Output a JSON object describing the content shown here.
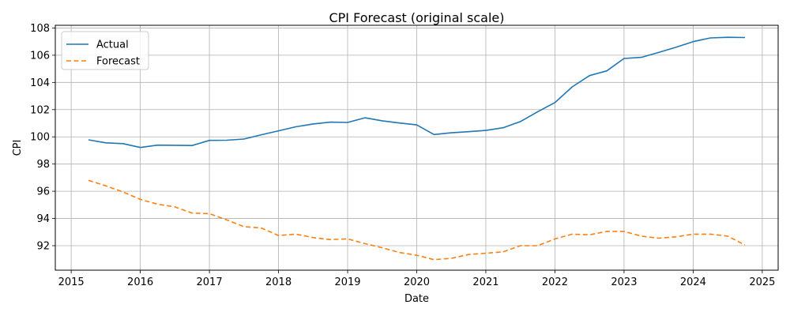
{
  "chart_data": {
    "type": "line",
    "title": "CPI Forecast (original scale)",
    "xlabel": "Date",
    "ylabel": "CPI",
    "xlim": [
      2014.77,
      2025.23
    ],
    "ylim": [
      90.2,
      108.2
    ],
    "x_ticks": [
      2015,
      2016,
      2017,
      2018,
      2019,
      2020,
      2021,
      2022,
      2023,
      2024,
      2025
    ],
    "x_tick_labels": [
      "2015",
      "2016",
      "2017",
      "2018",
      "2019",
      "2020",
      "2021",
      "2022",
      "2023",
      "2024",
      "2025"
    ],
    "y_ticks": [
      92,
      94,
      96,
      98,
      100,
      102,
      104,
      106,
      108
    ],
    "y_tick_labels": [
      "92",
      "94",
      "96",
      "98",
      "100",
      "102",
      "104",
      "106",
      "108"
    ],
    "grid": true,
    "legend_position": "upper-left",
    "x": [
      2015.25,
      2015.5,
      2015.75,
      2016.0,
      2016.25,
      2016.5,
      2016.75,
      2017.0,
      2017.25,
      2017.5,
      2017.75,
      2018.0,
      2018.25,
      2018.5,
      2018.75,
      2019.0,
      2019.25,
      2019.5,
      2019.75,
      2020.0,
      2020.25,
      2020.5,
      2020.75,
      2021.0,
      2021.25,
      2021.5,
      2021.75,
      2022.0,
      2022.25,
      2022.5,
      2022.75,
      2023.0,
      2023.25,
      2023.5,
      2023.75,
      2024.0,
      2024.25,
      2024.5,
      2024.75
    ],
    "series": [
      {
        "name": "Actual",
        "color": "#1f77b4",
        "style": "solid",
        "values": [
          99.78,
          99.56,
          99.5,
          99.22,
          99.39,
          99.38,
          99.36,
          99.74,
          99.75,
          99.84,
          100.15,
          100.44,
          100.74,
          100.95,
          101.08,
          101.06,
          101.4,
          101.18,
          101.02,
          100.88,
          100.17,
          100.3,
          100.38,
          100.47,
          100.67,
          101.12,
          101.85,
          102.52,
          103.67,
          104.5,
          104.85,
          105.76,
          105.84,
          106.2,
          106.58,
          107.0,
          107.27,
          107.32,
          107.3
        ]
      },
      {
        "name": "Forecast",
        "color": "#ff7f0e",
        "style": "dashed",
        "values": [
          96.8,
          96.4,
          95.95,
          95.4,
          95.05,
          94.85,
          94.4,
          94.35,
          93.9,
          93.4,
          93.3,
          92.75,
          92.85,
          92.6,
          92.45,
          92.5,
          92.15,
          91.85,
          91.5,
          91.3,
          90.97,
          91.07,
          91.35,
          91.45,
          91.55,
          92.0,
          92.0,
          92.5,
          92.85,
          92.8,
          93.05,
          93.05,
          92.7,
          92.55,
          92.65,
          92.85,
          92.85,
          92.7,
          92.05
        ]
      }
    ]
  }
}
